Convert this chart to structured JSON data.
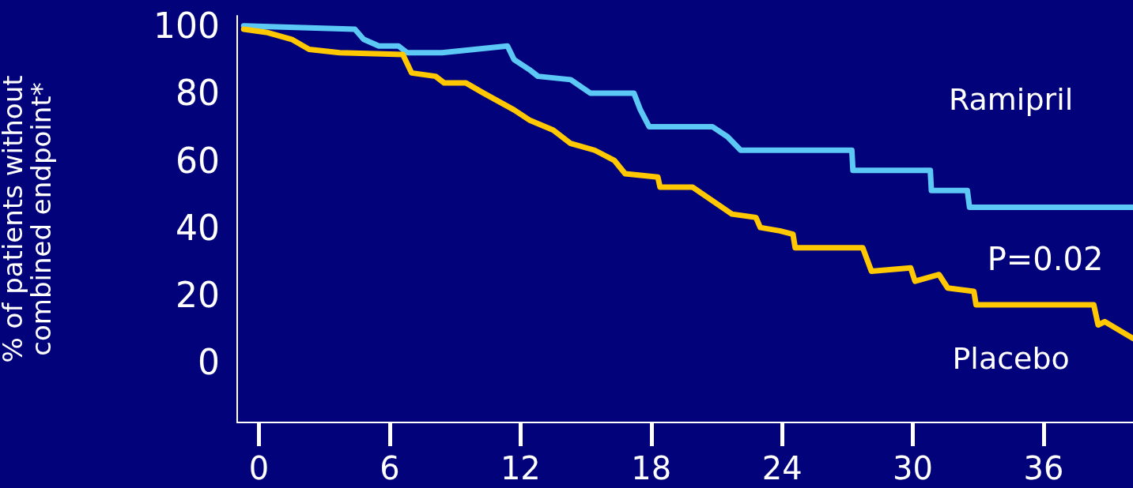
{
  "chart_data": {
    "type": "line",
    "ylabel": "% of patients without combined endpoint*",
    "xlim": [
      -1,
      40.1
    ],
    "xticks": [
      0,
      6,
      12,
      18,
      24,
      30,
      36
    ],
    "ylim": [
      -18,
      103
    ],
    "yticks": [
      0,
      20,
      40,
      60,
      80,
      100
    ],
    "grid": false,
    "legend": false,
    "marker": "none",
    "line_style": "solid",
    "annotations": [
      "P=0.02"
    ],
    "series": [
      {
        "name": "Ramipril",
        "color": "#5bc8f5",
        "x": [
          -0.7,
          4.4,
          4.8,
          5.5,
          6.4,
          6.8,
          8.4,
          11.4,
          11.7,
          12.4,
          12.8,
          14.3,
          15.2,
          17.2,
          17.5,
          17.9,
          20.8,
          21.5,
          22.1,
          27.2,
          27.25,
          30.8,
          30.85,
          32.5,
          32.6,
          40.1
        ],
        "values": [
          100,
          99,
          96,
          94,
          94,
          92,
          92,
          94,
          90,
          87,
          85,
          84,
          80,
          80,
          75,
          70,
          70,
          67,
          63,
          63,
          57,
          57,
          51,
          51,
          46,
          46
        ]
      },
      {
        "name": "Placebo",
        "color": "#ffc800",
        "x": [
          -0.7,
          0.4,
          1.5,
          2.3,
          3.7,
          6.6,
          7,
          8.1,
          8.5,
          9.5,
          10.3,
          11.7,
          12.4,
          13.5,
          14.3,
          15.4,
          16.3,
          16.8,
          18.3,
          18.4,
          19.9,
          20.8,
          21.7,
          22.8,
          23,
          23.9,
          24.5,
          24.6,
          27.7,
          28.1,
          29.9,
          30.1,
          31.2,
          31.6,
          32.8,
          32.9,
          38.3,
          38.5,
          38.8,
          40.1
        ],
        "values": [
          99,
          98,
          96,
          93,
          92,
          91.5,
          86,
          85,
          83,
          83,
          80,
          75,
          72,
          69,
          65,
          63,
          60,
          56,
          55,
          52,
          52,
          48,
          44,
          43,
          40,
          39,
          38,
          34,
          34,
          27,
          28,
          24,
          26,
          22,
          21,
          17,
          17,
          11,
          12,
          7
        ]
      }
    ]
  }
}
